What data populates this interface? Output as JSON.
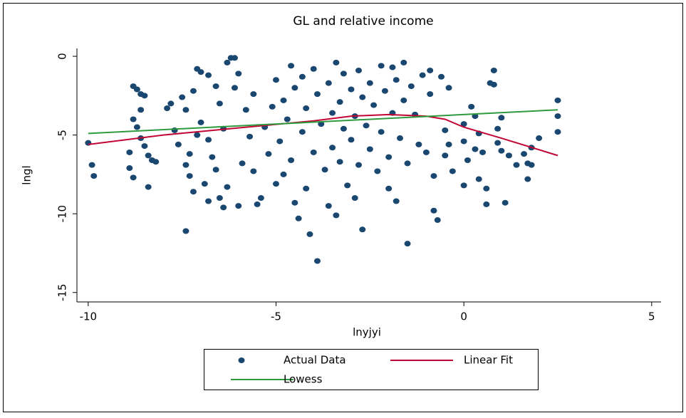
{
  "chart_data": {
    "type": "scatter",
    "title": "GL and relative income",
    "x_label": "lnyjyi",
    "y_label": "lngl",
    "xlim": [
      -10.3,
      5.25
    ],
    "xticks": [
      -10,
      -5,
      0,
      5
    ],
    "ylim": [
      -15.6,
      0.5
    ],
    "yticks": [
      -15,
      -10,
      -5,
      0
    ],
    "series": [
      {
        "name": "Actual Data",
        "type": "scatter",
        "color": "#1a476f",
        "x": [
          -10,
          -9.9,
          -9.85,
          -8.8,
          -8.7,
          -8.6,
          -8.5,
          -8.8,
          -8.7,
          -8.6,
          -8.5,
          -8.4,
          -8.3,
          -8.9,
          -8.8,
          -8.9,
          -8.4,
          -8.2,
          -8.6,
          -7.9,
          -7.8,
          -7.7,
          -7.6,
          -7.5,
          -7.4,
          -7.3,
          -7.4,
          -7.3,
          -7.2,
          -7.4,
          -7.2,
          -7.1,
          -7.0,
          -7.0,
          -7.1,
          -6.9,
          -6.8,
          -6.8,
          -6.7,
          -6.6,
          -6.5,
          -6.4,
          -6.8,
          -6.6,
          -6.5,
          -6.4,
          -6.3,
          -6.2,
          -6.1,
          -6.0,
          -6.1,
          -6.3,
          -6.0,
          -5.9,
          -5.8,
          -5.7,
          -5.6,
          -5.6,
          -5.5,
          -5.4,
          -5.3,
          -5.2,
          -5.1,
          -5.0,
          -5.0,
          -4.9,
          -4.8,
          -4.8,
          -4.7,
          -4.6,
          -4.6,
          -4.5,
          -4.5,
          -4.4,
          -4.3,
          -4.3,
          -4.2,
          -4.2,
          -4.1,
          -4.0,
          -4.0,
          -3.9,
          -3.9,
          -3.8,
          -3.7,
          -3.6,
          -3.6,
          -3.5,
          -3.5,
          -3.4,
          -3.4,
          -3.3,
          -3.3,
          -3.2,
          -3.2,
          -3.1,
          -3.0,
          -3.0,
          -2.9,
          -2.9,
          -2.8,
          -2.8,
          -2.7,
          -2.7,
          -2.6,
          -2.5,
          -2.5,
          -2.4,
          -2.3,
          -2.2,
          -2.2,
          -2.1,
          -2.0,
          -2.0,
          -1.9,
          -1.9,
          -1.8,
          -1.8,
          -1.7,
          -1.6,
          -1.6,
          -1.5,
          -1.5,
          -1.4,
          -1.3,
          -1.2,
          -1.1,
          -1.0,
          -0.9,
          -0.9,
          -0.8,
          -0.8,
          -0.7,
          -0.6,
          -0.5,
          -0.5,
          -0.4,
          -0.3,
          -0.4,
          0,
          0,
          0,
          0.1,
          0.2,
          0.3,
          0.3,
          0.4,
          0.4,
          0.5,
          0.6,
          0.6,
          0.7,
          0.8,
          0.8,
          0.9,
          0.9,
          1.0,
          1.1,
          1.0,
          1.2,
          1.4,
          1.6,
          1.7,
          1.7,
          1.8,
          1.8,
          2.0,
          2.5,
          2.5,
          2.5
        ],
        "values": [
          -5.5,
          -6.9,
          -7.6,
          -1.9,
          -2.1,
          -2.4,
          -2.5,
          -4.0,
          -4.5,
          -5.2,
          -5.7,
          -6.3,
          -6.6,
          -6.1,
          -7.7,
          -7.1,
          -8.3,
          -6.7,
          -3.4,
          -3.3,
          -3.0,
          -4.7,
          -5.6,
          -2.6,
          -3.4,
          -6.2,
          -6.9,
          -7.6,
          -8.6,
          -11.1,
          -2.2,
          -0.8,
          -1.0,
          -4.2,
          -5.0,
          -8.1,
          -9.2,
          -5.3,
          -6.4,
          -7.2,
          -9.0,
          -9.6,
          -1.2,
          -1.9,
          -3.0,
          -4.6,
          -0.4,
          -0.1,
          -0.1,
          -1.1,
          -2.0,
          -8.3,
          -9.5,
          -6.8,
          -3.4,
          -5.1,
          -2.4,
          -7.3,
          -9.4,
          -9.0,
          -4.5,
          -6.2,
          -3.2,
          -8.1,
          -1.5,
          -5.4,
          -2.8,
          -7.5,
          -4.0,
          -0.6,
          -6.6,
          -2.0,
          -9.3,
          -10.3,
          -1.3,
          -4.8,
          -3.3,
          -8.4,
          -11.3,
          -0.8,
          -6.1,
          -2.4,
          -13.0,
          -4.3,
          -7.2,
          -1.7,
          -9.5,
          -3.6,
          -5.8,
          -0.4,
          -10.1,
          -2.9,
          -6.7,
          -1.1,
          -4.6,
          -8.2,
          -2.1,
          -5.3,
          -3.8,
          -9.0,
          -0.9,
          -6.9,
          -11.0,
          -2.6,
          -4.4,
          -1.7,
          -5.9,
          -3.1,
          -7.3,
          -0.6,
          -4.8,
          -2.2,
          -6.4,
          -8.4,
          -0.7,
          -3.6,
          -1.5,
          -9.2,
          -5.2,
          -0.4,
          -2.8,
          -6.8,
          -11.9,
          -1.9,
          -3.7,
          -5.6,
          -1.2,
          -6.1,
          -0.9,
          -2.4,
          -7.6,
          -9.8,
          -10.4,
          -1.3,
          -4.7,
          -6.3,
          -2.0,
          -7.3,
          -5.6,
          -4.3,
          -5.4,
          -8.2,
          -6.6,
          -3.2,
          -3.8,
          -5.9,
          -7.8,
          -4.9,
          -6.1,
          -8.4,
          -9.4,
          -1.7,
          -0.9,
          -1.8,
          -4.6,
          -5.5,
          -6.0,
          -9.3,
          -3.9,
          -6.3,
          -6.9,
          -6.2,
          -6.8,
          -7.8,
          -6.9,
          -5.8,
          -5.2,
          -2.8,
          -3.8,
          -4.8
        ]
      },
      {
        "name": "Linear Fit",
        "type": "line",
        "color": "#c10534",
        "x": [
          -10,
          -8,
          -6,
          -4,
          -3,
          -2,
          -1,
          -0.5,
          0,
          1,
          2.5
        ],
        "values": [
          -5.6,
          -5.0,
          -4.55,
          -4.1,
          -3.8,
          -3.7,
          -3.8,
          -4.0,
          -4.5,
          -5.2,
          -6.3
        ]
      },
      {
        "name": "Lowess",
        "type": "line",
        "color": "#2e9a3e",
        "x": [
          -10,
          2.5
        ],
        "values": [
          -4.9,
          -3.4
        ]
      }
    ]
  }
}
